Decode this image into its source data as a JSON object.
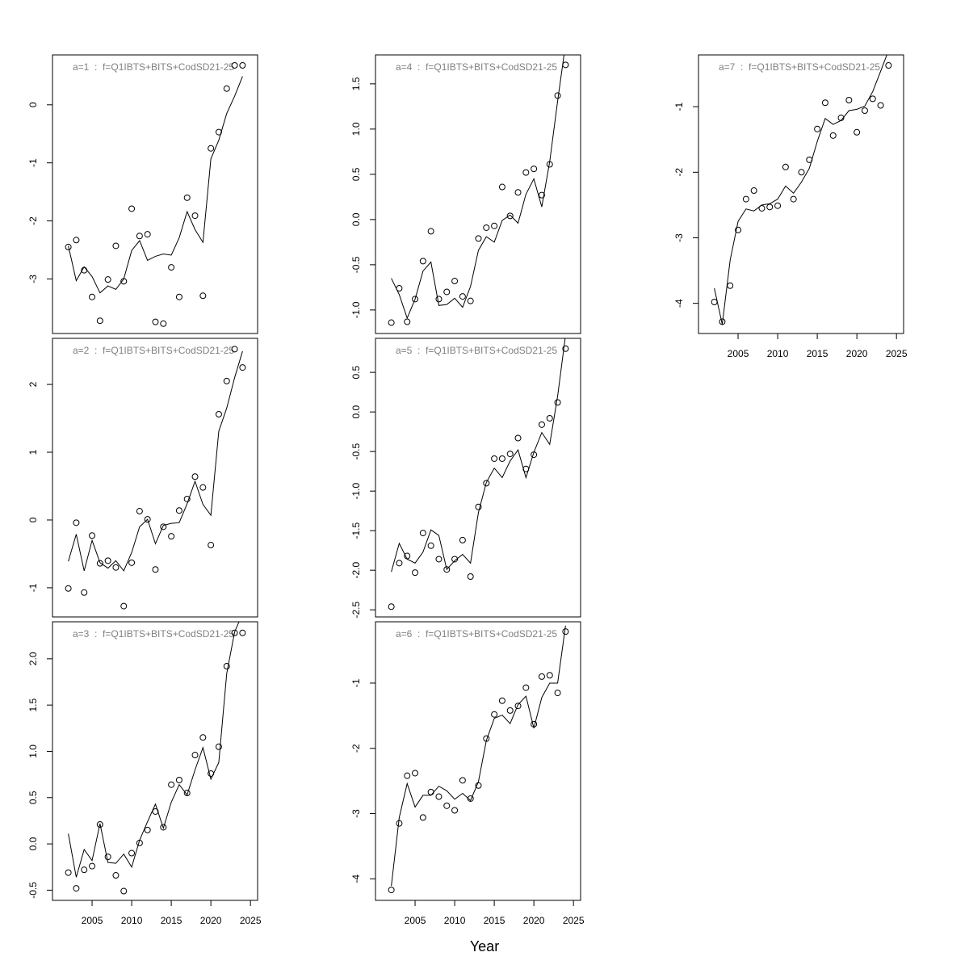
{
  "xlabel": "Year",
  "chart_data": [
    {
      "type": "line",
      "title": "a=1  :  f=Q1IBTS+BITS+CodSD21-25",
      "x": [
        2002,
        2003,
        2004,
        2005,
        2006,
        2007,
        2008,
        2009,
        2010,
        2011,
        2012,
        2013,
        2014,
        2015,
        2016,
        2017,
        2018,
        2019,
        2020,
        2021,
        2022,
        2023,
        2024
      ],
      "series": [
        {
          "mode": "points",
          "color": "#000000",
          "values": [
            -2.45,
            -2.33,
            -2.85,
            -3.31,
            -3.72,
            -3.01,
            -2.43,
            -3.04,
            -1.79,
            -2.26,
            -2.23,
            -3.74,
            -3.77,
            -2.8,
            -3.31,
            -1.6,
            -1.91,
            -3.29,
            -0.75,
            -0.47,
            0.28,
            0.68,
            0.68
          ]
        },
        {
          "mode": "line",
          "color": "#000000",
          "values": [
            -2.43,
            -3.03,
            -2.79,
            -2.96,
            -3.24,
            -3.12,
            -3.18,
            -3.0,
            -2.51,
            -2.34,
            -2.68,
            -2.61,
            -2.57,
            -2.59,
            -2.29,
            -1.84,
            -2.15,
            -2.37,
            -0.93,
            -0.61,
            -0.15,
            0.15,
            0.49
          ]
        }
      ],
      "xlim": [
        2000.0,
        2025.9
      ],
      "ylim": [
        -3.94,
        0.86
      ],
      "yticks": [
        -3,
        -2,
        -1,
        0
      ]
    },
    {
      "type": "line",
      "title": "a=2  :  f=Q1IBTS+BITS+CodSD21-25",
      "x": [
        2002,
        2003,
        2004,
        2005,
        2006,
        2007,
        2008,
        2009,
        2010,
        2011,
        2012,
        2013,
        2014,
        2015,
        2016,
        2017,
        2018,
        2019,
        2020,
        2021,
        2022,
        2023,
        2024
      ],
      "series": [
        {
          "mode": "points",
          "color": "#000000",
          "values": [
            -1.01,
            -0.04,
            -1.07,
            -0.23,
            -0.64,
            -0.6,
            -0.7,
            -1.27,
            -0.63,
            0.13,
            0.01,
            -0.73,
            -0.1,
            -0.24,
            0.14,
            0.31,
            0.64,
            0.48,
            -0.37,
            1.56,
            2.05,
            2.52,
            2.25
          ]
        },
        {
          "mode": "line",
          "color": "#000000",
          "values": [
            -0.61,
            -0.21,
            -0.75,
            -0.3,
            -0.63,
            -0.71,
            -0.6,
            -0.75,
            -0.48,
            -0.1,
            0.01,
            -0.35,
            -0.08,
            -0.05,
            -0.04,
            0.24,
            0.57,
            0.23,
            0.07,
            1.31,
            1.65,
            2.1,
            2.49
          ]
        }
      ],
      "xlim": [
        2000.0,
        2025.9
      ],
      "ylim": [
        -1.43,
        2.68
      ],
      "yticks": [
        -1,
        0,
        1,
        2
      ]
    },
    {
      "type": "line",
      "title": "a=3  :  f=Q1IBTS+BITS+CodSD21-25",
      "x": [
        2002,
        2003,
        2004,
        2005,
        2006,
        2007,
        2008,
        2009,
        2010,
        2011,
        2012,
        2013,
        2014,
        2015,
        2016,
        2017,
        2018,
        2019,
        2020,
        2021,
        2022,
        2023,
        2024
      ],
      "series": [
        {
          "mode": "points",
          "color": "#000000",
          "values": [
            -0.31,
            -0.48,
            -0.28,
            -0.24,
            0.21,
            -0.14,
            -0.34,
            -0.51,
            -0.1,
            0.01,
            0.15,
            0.35,
            0.18,
            0.64,
            0.69,
            0.55,
            0.96,
            1.15,
            0.76,
            1.05,
            1.92,
            2.28,
            2.28
          ]
        },
        {
          "mode": "line",
          "color": "#000000",
          "values": [
            0.11,
            -0.36,
            -0.06,
            -0.18,
            0.22,
            -0.2,
            -0.21,
            -0.11,
            -0.25,
            0.04,
            0.24,
            0.43,
            0.17,
            0.45,
            0.64,
            0.53,
            0.8,
            1.04,
            0.7,
            0.88,
            1.84,
            2.29,
            2.49
          ]
        }
      ],
      "xlim": [
        2000.0,
        2025.9
      ],
      "ylim": [
        -0.61,
        2.4
      ],
      "yticks": [
        -0.5,
        {
          "value": 0,
          "label": "0.0"
        },
        0.5,
        {
          "value": 1,
          "label": "1.0"
        },
        1.5,
        {
          "value": 2,
          "label": "2.0"
        }
      ],
      "xticks": [
        2005,
        2010,
        2015,
        2020,
        2025
      ]
    },
    {
      "type": "line",
      "title": "a=4  :  f=Q1IBTS+BITS+CodSD21-25",
      "x": [
        2002,
        2003,
        2004,
        2005,
        2006,
        2007,
        2008,
        2009,
        2010,
        2011,
        2012,
        2013,
        2014,
        2015,
        2016,
        2017,
        2018,
        2019,
        2020,
        2021,
        2022,
        2023,
        2024
      ],
      "series": [
        {
          "mode": "points",
          "color": "#000000",
          "values": [
            -1.14,
            -0.76,
            -1.13,
            -0.88,
            -0.46,
            -0.13,
            -0.88,
            -0.8,
            -0.68,
            -0.85,
            -0.9,
            -0.21,
            -0.09,
            -0.07,
            0.36,
            0.04,
            0.3,
            0.52,
            0.56,
            0.27,
            0.61,
            1.37,
            1.71
          ]
        },
        {
          "mode": "line",
          "color": "#000000",
          "values": [
            -0.65,
            -0.83,
            -1.09,
            -0.88,
            -0.57,
            -0.47,
            -0.95,
            -0.94,
            -0.87,
            -0.97,
            -0.74,
            -0.34,
            -0.19,
            -0.25,
            -0.01,
            0.05,
            -0.04,
            0.28,
            0.45,
            0.14,
            0.64,
            1.31,
            1.94
          ]
        }
      ],
      "xlim": [
        2000.0,
        2025.9
      ],
      "ylim": [
        -1.26,
        1.82
      ],
      "yticks": [
        {
          "value": -1,
          "label": "-1.0"
        },
        -0.5,
        {
          "value": 0,
          "label": "0.0"
        },
        0.5,
        {
          "value": 1,
          "label": "1.0"
        },
        1.5
      ]
    },
    {
      "type": "line",
      "title": "a=5  :  f=Q1IBTS+BITS+CodSD21-25",
      "x": [
        2002,
        2003,
        2004,
        2005,
        2006,
        2007,
        2008,
        2009,
        2010,
        2011,
        2012,
        2013,
        2014,
        2015,
        2016,
        2017,
        2018,
        2019,
        2020,
        2021,
        2022,
        2023,
        2024
      ],
      "series": [
        {
          "mode": "points",
          "color": "#000000",
          "values": [
            -2.46,
            -1.91,
            -1.82,
            -2.03,
            -1.53,
            -1.69,
            -1.86,
            -1.99,
            -1.86,
            -1.62,
            -2.08,
            -1.2,
            -0.9,
            -0.59,
            -0.59,
            -0.53,
            -0.33,
            -0.72,
            -0.54,
            -0.16,
            -0.08,
            0.12,
            0.8
          ]
        },
        {
          "mode": "line",
          "color": "#000000",
          "values": [
            -2.02,
            -1.66,
            -1.86,
            -1.91,
            -1.77,
            -1.49,
            -1.56,
            -1.99,
            -1.88,
            -1.8,
            -1.91,
            -1.27,
            -0.89,
            -0.71,
            -0.83,
            -0.62,
            -0.48,
            -0.83,
            -0.51,
            -0.26,
            -0.41,
            0.2,
            0.97
          ]
        }
      ],
      "xlim": [
        2000.0,
        2025.9
      ],
      "ylim": [
        -2.59,
        0.93
      ],
      "yticks": [
        -2.5,
        {
          "value": -2,
          "label": "-2.0"
        },
        -1.5,
        {
          "value": -1,
          "label": "-1.0"
        },
        -0.5,
        {
          "value": 0,
          "label": "0.0"
        },
        0.5
      ]
    },
    {
      "type": "line",
      "title": "a=6  :  f=Q1IBTS+BITS+CodSD21-25",
      "x": [
        2002,
        2003,
        2004,
        2005,
        2006,
        2007,
        2008,
        2009,
        2010,
        2011,
        2012,
        2013,
        2014,
        2015,
        2016,
        2017,
        2018,
        2019,
        2020,
        2021,
        2022,
        2023,
        2024
      ],
      "series": [
        {
          "mode": "points",
          "color": "#000000",
          "values": [
            -4.17,
            -3.15,
            -2.42,
            -2.38,
            -3.06,
            -2.67,
            -2.74,
            -2.88,
            -2.95,
            -2.49,
            -2.77,
            -2.57,
            -1.85,
            -1.48,
            -1.27,
            -1.42,
            -1.35,
            -1.07,
            -1.63,
            -0.9,
            -0.88,
            -1.15,
            -0.21
          ]
        },
        {
          "mode": "line",
          "color": "#000000",
          "values": [
            -4.11,
            -3.06,
            -2.54,
            -2.9,
            -2.72,
            -2.72,
            -2.58,
            -2.65,
            -2.78,
            -2.69,
            -2.8,
            -2.51,
            -1.88,
            -1.54,
            -1.49,
            -1.62,
            -1.33,
            -1.2,
            -1.69,
            -1.22,
            -1.0,
            -1.0,
            -0.12
          ]
        }
      ],
      "xlim": [
        2000.0,
        2025.9
      ],
      "ylim": [
        -4.33,
        -0.06
      ],
      "yticks": [
        -4,
        -3,
        -2,
        -1
      ],
      "xticks": [
        2005,
        2010,
        2015,
        2020,
        2025
      ]
    },
    {
      "type": "line",
      "title": "a=7  :  f=Q1IBTS+BITS+CodSD21-25",
      "x": [
        2002,
        2003,
        2004,
        2005,
        2006,
        2007,
        2008,
        2009,
        2010,
        2011,
        2012,
        2013,
        2014,
        2015,
        2016,
        2017,
        2018,
        2019,
        2020,
        2021,
        2022,
        2023,
        2024
      ],
      "series": [
        {
          "mode": "points",
          "color": "#000000",
          "values": [
            -3.98,
            -4.28,
            -3.73,
            -2.88,
            -2.41,
            -2.28,
            -2.55,
            -2.53,
            -2.51,
            -1.92,
            -2.41,
            -2.0,
            -1.81,
            -1.34,
            -0.94,
            -1.44,
            -1.17,
            -0.9,
            -1.39,
            -1.06,
            -0.88,
            -0.98,
            -0.37
          ]
        },
        {
          "mode": "line",
          "color": "#000000",
          "values": [
            -3.77,
            -4.32,
            -3.34,
            -2.75,
            -2.56,
            -2.59,
            -2.5,
            -2.48,
            -2.41,
            -2.21,
            -2.32,
            -2.15,
            -1.94,
            -1.53,
            -1.18,
            -1.27,
            -1.21,
            -1.06,
            -1.04,
            -0.99,
            -0.77,
            -0.46,
            -0.14
          ]
        }
      ],
      "xlim": [
        2000.0,
        2025.9
      ],
      "ylim": [
        -4.46,
        -0.21
      ],
      "yticks": [
        -4,
        -3,
        -2,
        -1
      ],
      "xticks": [
        2005,
        2010,
        2015,
        2020,
        2025
      ]
    }
  ]
}
